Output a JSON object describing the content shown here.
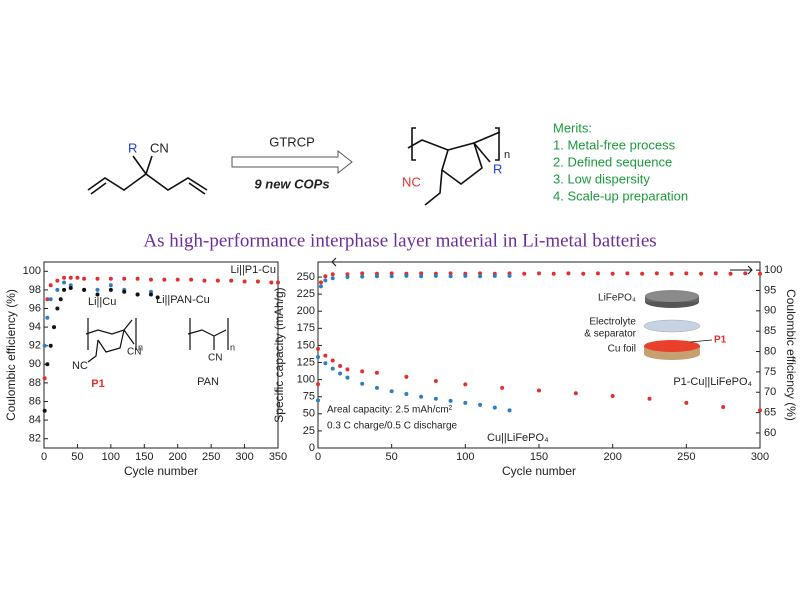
{
  "scheme": {
    "reactant": {
      "groups": [
        "R",
        "CN"
      ]
    },
    "reagent": "GTRCP",
    "note": "9 new COPs",
    "product": {
      "groups": [
        "n",
        "NC",
        "R"
      ]
    },
    "merits": {
      "title": "Merits:",
      "items": [
        "1. Metal-free process",
        "2. Defined sequence",
        "3. Low dispersity",
        "4. Scale-up preparation"
      ]
    }
  },
  "headline": "As high-performance interphase layer material in Li-metal batteries",
  "chart_data": [
    {
      "type": "scatter",
      "xlabel": "Cycle number",
      "ylabel": "Coulombic efficiency (%)",
      "xlim": [
        0,
        350
      ],
      "xticks": [
        0,
        50,
        100,
        150,
        200,
        250,
        300,
        350
      ],
      "ylim": [
        81,
        101
      ],
      "yticks": [
        82,
        84,
        86,
        88,
        90,
        92,
        94,
        96,
        98,
        100
      ],
      "series": [
        {
          "name": "Li||P1-Cu",
          "color": "#e03030",
          "x": [
            1,
            5,
            10,
            20,
            30,
            40,
            50,
            60,
            80,
            100,
            120,
            140,
            160,
            180,
            200,
            220,
            240,
            260,
            280,
            300,
            320,
            340,
            350
          ],
          "values": [
            88.5,
            97,
            98.5,
            99,
            99.3,
            99.3,
            99.3,
            99.2,
            99.2,
            99.2,
            99.2,
            99.2,
            99.1,
            99.1,
            99.1,
            99.1,
            99.0,
            99.0,
            99.0,
            98.9,
            98.9,
            98.8,
            98.8
          ]
        },
        {
          "name": "Li||Cu",
          "color": "#2e7fc0",
          "x": [
            1,
            5,
            10,
            20,
            30,
            40,
            60,
            80,
            100,
            120,
            140,
            160
          ],
          "values": [
            92,
            95,
            97,
            98,
            98.8,
            98.5,
            98,
            98,
            98.5,
            98,
            97.5,
            97.8
          ]
        },
        {
          "name": "Li||PAN-Cu",
          "color": "#111111",
          "x": [
            1,
            5,
            10,
            15,
            20,
            25,
            30,
            40,
            60,
            80,
            100,
            120,
            140,
            160,
            170
          ],
          "values": [
            85,
            90,
            92,
            94,
            96,
            97,
            98,
            98.2,
            98,
            97.5,
            98,
            97.8,
            97.5,
            97.5,
            97.2
          ]
        }
      ],
      "structures": [
        {
          "label": "P1",
          "groups": [
            "n",
            "NC",
            "CN"
          ]
        },
        {
          "label": "PAN",
          "groups": [
            "n",
            "CN"
          ]
        }
      ]
    },
    {
      "type": "scatter",
      "xlabel": "Cycle number",
      "ylabel": "Specific capacity (mAh/g)",
      "y2label": "Coulombic efficiency (%)",
      "xlim": [
        0,
        300
      ],
      "xticks": [
        0,
        50,
        100,
        150,
        200,
        250,
        300
      ],
      "ylim": [
        0,
        272
      ],
      "yticks": [
        0,
        25,
        50,
        75,
        100,
        125,
        150,
        175,
        200,
        225,
        250
      ],
      "y2lim": [
        56.3,
        102
      ],
      "y2ticks": [
        60,
        65,
        70,
        75,
        80,
        85,
        90,
        95,
        100
      ],
      "series": [
        {
          "name": "P1-Cu||LiFePO₄",
          "color": "#e03030",
          "x": [
            0,
            5,
            10,
            15,
            20,
            30,
            40,
            60,
            80,
            100,
            125,
            150,
            175,
            200,
            225,
            250,
            275,
            300
          ],
          "values": [
            145,
            135,
            128,
            120,
            115,
            112,
            110,
            104,
            98,
            93,
            88,
            84,
            80,
            76,
            72,
            66,
            60,
            55
          ]
        },
        {
          "name": "Cu||LiFePO₄",
          "color": "#2e7fc0",
          "x": [
            0,
            5,
            10,
            15,
            20,
            30,
            40,
            50,
            60,
            70,
            80,
            90,
            100,
            110,
            120,
            130
          ],
          "values": [
            133,
            124,
            116,
            109,
            103,
            94,
            88,
            83,
            79,
            75,
            72,
            69,
            66,
            63,
            59,
            55
          ]
        },
        {
          "name": null,
          "color": "#e03030",
          "axis": "y2",
          "x": [
            0,
            2,
            5,
            10,
            20,
            30,
            40,
            50,
            60,
            70,
            80,
            90,
            100,
            110,
            120,
            130,
            140,
            150,
            160,
            170,
            180,
            190,
            200,
            210,
            220,
            230,
            240,
            250,
            260,
            270,
            280,
            290,
            300
          ],
          "values": [
            72,
            97,
            98.5,
            99,
            99,
            99.2,
            99.1,
            99.2,
            99.1,
            99.2,
            99.1,
            99.2,
            99.1,
            99.2,
            99.1,
            99.2,
            99.1,
            99.2,
            99.1,
            99.2,
            99.1,
            99.2,
            99.1,
            99.2,
            99.1,
            99.2,
            99.1,
            99.2,
            99.1,
            99.2,
            99.1,
            99.2,
            99.1
          ]
        },
        {
          "name": null,
          "color": "#2e7fc0",
          "axis": "y2",
          "x": [
            0,
            2,
            5,
            10,
            20,
            30,
            40,
            50,
            60,
            70,
            80,
            90,
            100,
            110,
            120,
            130
          ],
          "values": [
            68,
            96,
            97.5,
            98,
            98.3,
            98.4,
            98.5,
            98.5,
            98.6,
            98.5,
            98.6,
            98.5,
            98.6,
            98.5,
            98.6,
            98.6
          ]
        }
      ],
      "annotations": [
        "Areal capacity: 2.5 mAh/cm²",
        "0.3 C charge/0.5 C discharge"
      ],
      "inset": [
        "LiFePO₄",
        "Electrolyte",
        "& separator",
        "Cu foil",
        "P1"
      ]
    }
  ]
}
